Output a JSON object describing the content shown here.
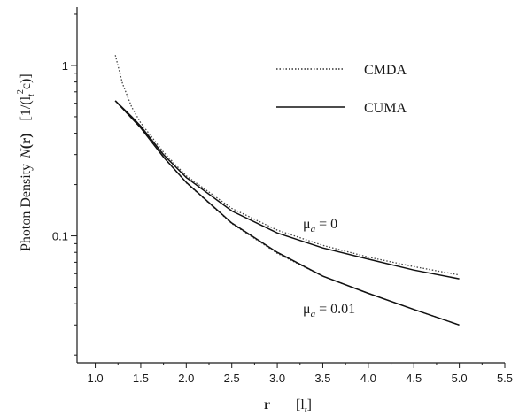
{
  "chart_data": {
    "type": "line",
    "title": "",
    "xlabel": "r",
    "xlabel_unit": "[l",
    "xlabel_unit_sub": "t",
    "xlabel_unit_end": "]",
    "ylabel": "Photon Density",
    "ylabel_symbol": "N",
    "ylabel_arg": "(r)",
    "ylabel_unit": "[1/(l",
    "ylabel_unit_sub": "t",
    "ylabel_unit_sup": "2",
    "ylabel_unit_end": "c)]",
    "xlim": [
      0.8,
      5.5
    ],
    "ylim": [
      0.018,
      2.2
    ],
    "yscale": "log",
    "grid": false,
    "legend_position": "top-right",
    "x_ticks": [
      "1.0",
      "1.5",
      "2.0",
      "2.5",
      "3.0",
      "3.5",
      "4.0",
      "4.5",
      "5.0",
      "5.5"
    ],
    "y_ticks": [
      {
        "value": 0.1,
        "label": "0.1"
      },
      {
        "value": 1,
        "label": "1"
      }
    ],
    "legend": [
      {
        "name": "CMDA",
        "style": "dotted"
      },
      {
        "name": "CUMA",
        "style": "solid"
      }
    ],
    "annotations": [
      {
        "symbol": "μ",
        "sub": "a",
        "text": " = 0"
      },
      {
        "symbol": "μ",
        "sub": "a",
        "text": " = 0.01"
      }
    ],
    "series": [
      {
        "name": "CMDA",
        "group": "μa = 0",
        "style": "dotted",
        "x": [
          1.22,
          1.3,
          1.4,
          1.5,
          1.75,
          2.0,
          2.5,
          3.0,
          3.5,
          4.0,
          4.5,
          5.0
        ],
        "y": [
          1.15,
          0.78,
          0.57,
          0.46,
          0.31,
          0.225,
          0.145,
          0.108,
          0.088,
          0.075,
          0.066,
          0.059
        ]
      },
      {
        "name": "CUMA",
        "group": "μa = 0",
        "style": "solid",
        "x": [
          1.22,
          1.4,
          1.5,
          1.75,
          2.0,
          2.5,
          3.0,
          3.5,
          4.0,
          4.5,
          5.0
        ],
        "y": [
          0.62,
          0.5,
          0.44,
          0.3,
          0.22,
          0.14,
          0.104,
          0.085,
          0.073,
          0.063,
          0.056
        ]
      },
      {
        "name": "CMDA",
        "group": "μa = 0.01",
        "style": "dotted",
        "x": [
          1.22,
          1.4,
          1.5,
          1.75,
          2.0,
          2.5,
          3.0,
          3.5,
          4.0,
          4.5,
          5.0
        ],
        "y": [
          0.62,
          0.49,
          0.43,
          0.29,
          0.205,
          0.118,
          0.079,
          0.058,
          0.046,
          0.037,
          0.03
        ]
      },
      {
        "name": "CUMA",
        "group": "μa = 0.01",
        "style": "solid",
        "x": [
          1.22,
          1.4,
          1.5,
          1.75,
          2.0,
          2.5,
          3.0,
          3.5,
          4.0,
          4.5,
          5.0
        ],
        "y": [
          0.62,
          0.49,
          0.43,
          0.29,
          0.206,
          0.119,
          0.08,
          0.058,
          0.046,
          0.037,
          0.03
        ]
      }
    ]
  }
}
